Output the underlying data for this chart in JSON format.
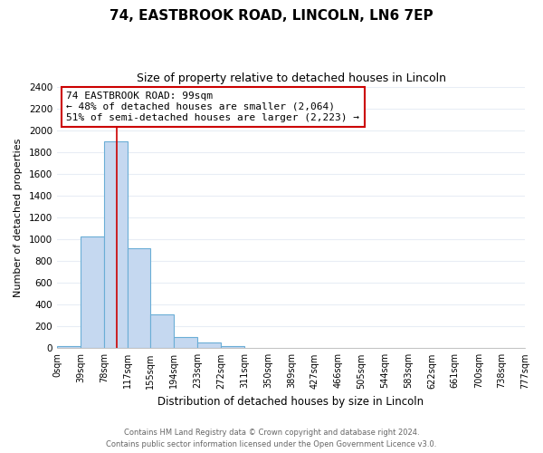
{
  "title": "74, EASTBROOK ROAD, LINCOLN, LN6 7EP",
  "subtitle": "Size of property relative to detached houses in Lincoln",
  "xlabel": "Distribution of detached houses by size in Lincoln",
  "ylabel": "Number of detached properties",
  "footer_line1": "Contains HM Land Registry data © Crown copyright and database right 2024.",
  "footer_line2": "Contains public sector information licensed under the Open Government Licence v3.0.",
  "bin_edges": [
    0,
    39,
    78,
    117,
    155,
    194,
    233,
    272,
    311,
    350,
    389,
    427,
    466,
    505,
    544,
    583,
    622,
    661,
    700,
    738,
    777
  ],
  "bin_labels": [
    "0sqm",
    "39sqm",
    "78sqm",
    "117sqm",
    "155sqm",
    "194sqm",
    "233sqm",
    "272sqm",
    "311sqm",
    "350sqm",
    "389sqm",
    "427sqm",
    "466sqm",
    "505sqm",
    "544sqm",
    "583sqm",
    "622sqm",
    "661sqm",
    "700sqm",
    "738sqm",
    "777sqm"
  ],
  "bar_heights": [
    20,
    1025,
    1900,
    920,
    310,
    100,
    50,
    20,
    0,
    0,
    0,
    0,
    0,
    0,
    0,
    0,
    0,
    0,
    0,
    0
  ],
  "bar_color": "#C5D8F0",
  "bar_edge_color": "#6BAED6",
  "vline_x": 99,
  "vline_color": "#cc0000",
  "annotation_title": "74 EASTBROOK ROAD: 99sqm",
  "annotation_line1": "← 48% of detached houses are smaller (2,064)",
  "annotation_line2": "51% of semi-detached houses are larger (2,223) →",
  "ylim": [
    0,
    2400
  ],
  "yticks": [
    0,
    200,
    400,
    600,
    800,
    1000,
    1200,
    1400,
    1600,
    1800,
    2000,
    2200,
    2400
  ],
  "background_color": "#ffffff",
  "grid_color": "#e8edf5"
}
